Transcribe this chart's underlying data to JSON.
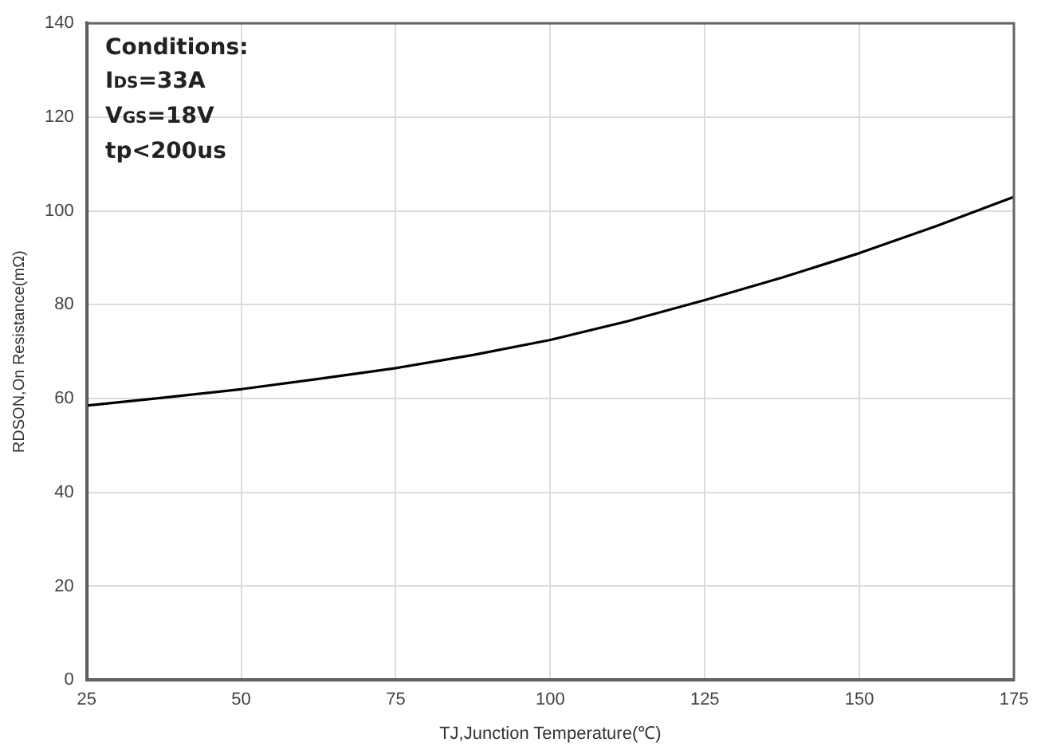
{
  "chart_data": {
    "type": "line",
    "xlabel": "TJ,Junction Temperature(℃)",
    "ylabel": "RDSON,On Resistance(mΩ)",
    "annotations": [
      "Conditions:",
      "I$_{DS}$=33A",
      "V$_{GS}$=18V",
      "tp<200us"
    ],
    "x": [
      25,
      37.5,
      50,
      62.5,
      75,
      87.5,
      100,
      112.5,
      125,
      137.5,
      150,
      162.5,
      175
    ],
    "series": [
      {
        "color": "#000000",
        "values": [
          58.5,
          60.2,
          62,
          64.2,
          66.5,
          69.3,
          72.5,
          76.5,
          81,
          85.8,
          91,
          96.8,
          103
        ]
      }
    ],
    "xlim": [
      25,
      175
    ],
    "xticks": [
      25,
      50,
      75,
      100,
      125,
      150,
      175
    ],
    "ylim": [
      0,
      140
    ],
    "yticks": [
      0,
      20,
      40,
      60,
      80,
      100,
      120,
      140
    ],
    "grid": true,
    "legend": false,
    "marker": "none",
    "line_style": "solid"
  }
}
